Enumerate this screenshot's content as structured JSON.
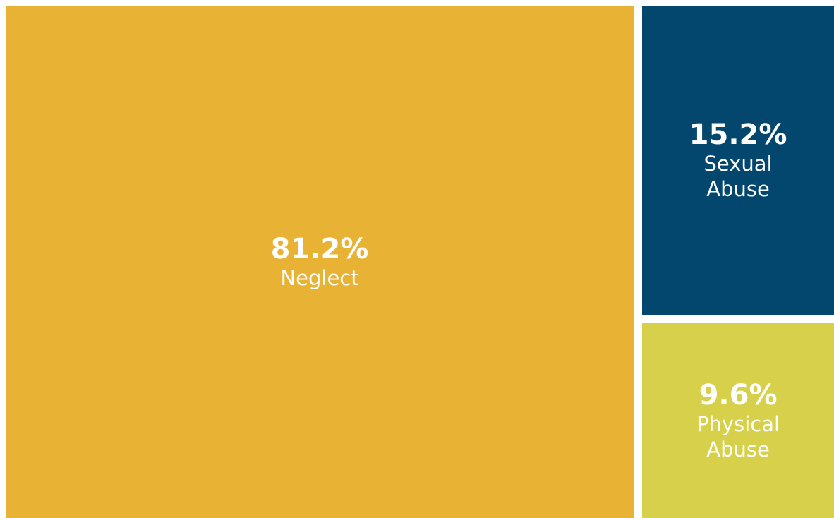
{
  "chart_data": {
    "type": "treemap",
    "categories": [
      "Neglect",
      "Sexual Abuse",
      "Physical Abuse"
    ],
    "values": [
      81.2,
      15.2,
      9.6
    ],
    "value_labels": [
      "81.2%",
      "15.2%",
      "9.6%"
    ],
    "colors": [
      "#e8b234",
      "#03476f",
      "#d6d04a"
    ]
  }
}
